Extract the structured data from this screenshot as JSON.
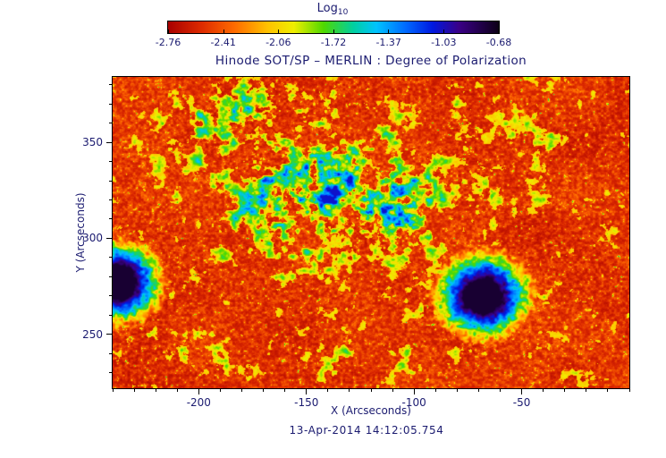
{
  "colors": {
    "background": "#ffffff",
    "text": "#1b1b70",
    "frame": "#000000"
  },
  "colorbar": {
    "label_main": "Log",
    "label_sub": "10",
    "tick_labels": [
      "-2.76",
      "-2.41",
      "-2.06",
      "-1.72",
      "-1.37",
      "-1.03",
      "-0.68"
    ]
  },
  "chart_data": {
    "type": "heatmap",
    "title": "Hinode SOT/SP – MERLIN : Degree of Polarization",
    "xlabel": "X (Arcseconds)",
    "ylabel": "Y (Arcseconds)",
    "timestamp": "13-Apr-2014 14:12:05.754",
    "xlim": [
      -240,
      0
    ],
    "ylim": [
      222,
      384
    ],
    "xticks": [
      -200,
      -150,
      -100,
      -50
    ],
    "yticks": [
      250,
      300,
      350
    ],
    "minor_tick_step": 10,
    "colorbar_label": "Log10",
    "colorbar_ticks": [
      -2.76,
      -2.41,
      -2.06,
      -1.72,
      -1.37,
      -1.03,
      -0.68
    ],
    "value_range_log10": [
      -2.94,
      -0.5
    ],
    "grid": false,
    "legend": "horizontal colorbar, top center",
    "features": {
      "background_field": "solar granulation, log10 polarization ~ -2.9 to -2.3 (red/orange)",
      "network": "magnetic network lanes, log10 polarization ~ -1.8 to -1.1 (green/cyan/blue), densest in the upper-middle of the map",
      "sunspots": [
        {
          "x": -68,
          "y": 270,
          "umbra_radius": 9,
          "outer_radius": 20,
          "note": "full sunspot, dark purple umbra (log10 p ~ -0.75) ringed by blue/cyan/green/yellow penumbra"
        },
        {
          "x": -238,
          "y": 277,
          "umbra_radius": 9,
          "outer_radius": 19,
          "note": "second sunspot clipped by the left edge of the field of view"
        }
      ]
    },
    "render": {
      "seed": 7,
      "colormap": [
        {
          "t": 0.0,
          "c": "#a80000"
        },
        {
          "t": 0.1,
          "c": "#dd2a00"
        },
        {
          "t": 0.2,
          "c": "#ff6a00"
        },
        {
          "t": 0.3,
          "c": "#ffc100"
        },
        {
          "t": 0.38,
          "c": "#f0ee00"
        },
        {
          "t": 0.47,
          "c": "#4fd800"
        },
        {
          "t": 0.56,
          "c": "#00cfa0"
        },
        {
          "t": 0.63,
          "c": "#00c3ff"
        },
        {
          "t": 0.72,
          "c": "#0068ff"
        },
        {
          "t": 0.8,
          "c": "#0018e0"
        },
        {
          "t": 0.88,
          "c": "#3a0086"
        },
        {
          "t": 1.0,
          "c": "#0c0016"
        }
      ],
      "network_blobs": [
        {
          "x": -155,
          "y": 324,
          "sx": 50,
          "sy": 38,
          "w": 0.95
        },
        {
          "x": -114,
          "y": 329,
          "sx": 22,
          "sy": 22,
          "w": 0.6
        },
        {
          "x": -188,
          "y": 368,
          "sx": 28,
          "sy": 16,
          "w": 0.55
        },
        {
          "x": -101,
          "y": 305,
          "sx": 18,
          "sy": 18,
          "w": 0.5
        },
        {
          "x": -210,
          "y": 246,
          "sx": 26,
          "sy": 18,
          "w": 0.45
        },
        {
          "x": -126,
          "y": 238,
          "sx": 35,
          "sy": 12,
          "w": 0.35
        },
        {
          "x": -43,
          "y": 363,
          "sx": 25,
          "sy": 20,
          "w": 0.3
        },
        {
          "x": -62,
          "y": 326,
          "sx": 16,
          "sy": 14,
          "w": 0.35
        }
      ]
    }
  }
}
